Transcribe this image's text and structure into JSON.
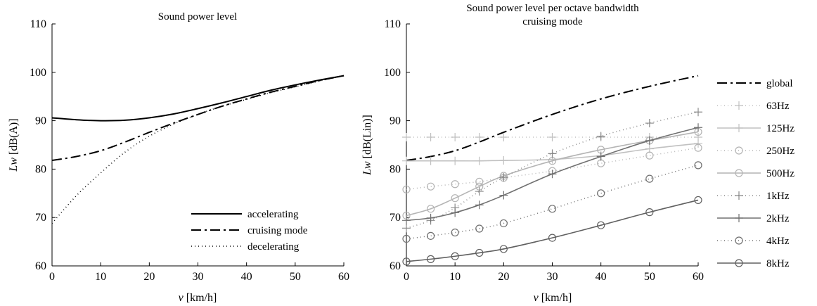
{
  "chart_data": [
    {
      "type": "line",
      "title": "Sound power level",
      "xlabel_var": "v",
      "xlabel_unit": "[km/h]",
      "ylabel_var": "Lw",
      "ylabel_unit": "[dB(A)]",
      "xlim": [
        0,
        60
      ],
      "ylim": [
        60,
        110
      ],
      "xticks": [
        0,
        10,
        20,
        30,
        40,
        50,
        60
      ],
      "yticks": [
        60,
        70,
        80,
        90,
        100,
        110
      ],
      "grid": false,
      "legend": "bottom-right",
      "x": [
        0,
        5,
        10,
        15,
        20,
        25,
        30,
        35,
        40,
        45,
        50,
        55,
        60
      ],
      "series": [
        {
          "name": "accelerating",
          "style": "solid",
          "color": "#000000",
          "values": [
            90.6,
            90.2,
            90.0,
            90.1,
            90.6,
            91.4,
            92.5,
            93.7,
            95.0,
            96.3,
            97.4,
            98.4,
            99.3
          ]
        },
        {
          "name": "cruising mode",
          "style": "dashdot",
          "color": "#000000",
          "values": [
            81.8,
            82.6,
            83.8,
            85.6,
            87.6,
            89.5,
            91.3,
            93.0,
            94.5,
            95.9,
            97.1,
            98.3,
            99.3
          ]
        },
        {
          "name": "decelerating",
          "style": "dotted",
          "color": "#000000",
          "values": [
            68.8,
            74.5,
            79.2,
            83.5,
            86.8,
            89.3,
            91.3,
            93.0,
            94.4,
            95.8,
            97.0,
            98.2,
            99.3
          ]
        }
      ]
    },
    {
      "type": "line",
      "title": "Sound power level per octave bandwidth",
      "subtitle": "cruising mode",
      "xlabel_var": "v",
      "xlabel_unit": "[km/h]",
      "ylabel_var": "Lw",
      "ylabel_unit": "[dB(Lin)]",
      "xlim": [
        0,
        60
      ],
      "ylim": [
        60,
        110
      ],
      "xticks": [
        0,
        10,
        20,
        30,
        40,
        50,
        60
      ],
      "yticks": [
        60,
        70,
        80,
        90,
        100,
        110
      ],
      "grid": false,
      "legend": "outside-right",
      "x": [
        0,
        5,
        10,
        15,
        20,
        30,
        40,
        50,
        60
      ],
      "series": [
        {
          "name": "global",
          "style": "dashdot",
          "marker": "none",
          "color": "#000000",
          "values": [
            81.8,
            82.6,
            83.8,
            85.6,
            87.6,
            91.3,
            94.5,
            97.1,
            99.3
          ]
        },
        {
          "name": "63Hz",
          "style": "dotted",
          "marker": "plus",
          "color": "#c0c0c0",
          "values": [
            86.6,
            86.6,
            86.6,
            86.6,
            86.6,
            86.6,
            86.6,
            86.6,
            86.6
          ]
        },
        {
          "name": "125Hz",
          "style": "solid",
          "marker": "plus",
          "color": "#c0c0c0",
          "values": [
            81.7,
            81.7,
            81.7,
            81.7,
            81.8,
            82.0,
            82.8,
            84.2,
            85.3
          ]
        },
        {
          "name": "250Hz",
          "style": "dotted",
          "marker": "circle",
          "color": "#b4b4b4",
          "values": [
            75.8,
            76.4,
            76.9,
            77.4,
            78.2,
            79.6,
            81.2,
            82.8,
            84.4
          ]
        },
        {
          "name": "500Hz",
          "style": "solid",
          "marker": "circle",
          "color": "#b4b4b4",
          "values": [
            70.4,
            71.8,
            74.0,
            76.4,
            78.6,
            81.7,
            84.0,
            85.9,
            87.7
          ]
        },
        {
          "name": "1kHz",
          "style": "dotted",
          "marker": "plus",
          "color": "#888888",
          "values": [
            67.8,
            69.4,
            72.0,
            75.4,
            78.3,
            83.2,
            86.8,
            89.5,
            91.8
          ]
        },
        {
          "name": "2kHz",
          "style": "solid",
          "marker": "plus",
          "color": "#707070",
          "values": [
            69.4,
            69.9,
            71.0,
            72.6,
            74.6,
            79.0,
            82.6,
            85.9,
            88.6
          ]
        },
        {
          "name": "4kHz",
          "style": "dotted",
          "marker": "circle",
          "color": "#707070",
          "values": [
            65.6,
            66.2,
            66.9,
            67.7,
            68.8,
            71.8,
            75.0,
            78.0,
            80.8
          ]
        },
        {
          "name": "8kHz",
          "style": "solid",
          "marker": "circle",
          "color": "#606060",
          "values": [
            60.9,
            61.4,
            62.0,
            62.7,
            63.5,
            65.8,
            68.4,
            71.1,
            73.6
          ]
        }
      ]
    }
  ]
}
